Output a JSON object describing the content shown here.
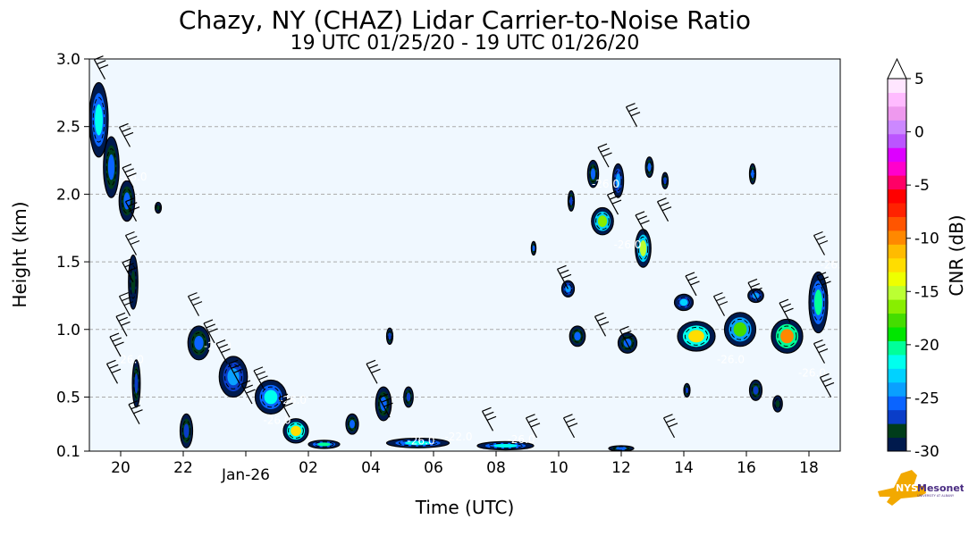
{
  "chart_data": {
    "type": "heatmap",
    "title": "Chazy, NY (CHAZ) Lidar Carrier-to-Noise Ratio",
    "subtitle": "19 UTC 01/25/20 - 19 UTC 01/26/20",
    "xlabel": "Time (UTC)",
    "ylabel": "Height (km)",
    "colorbar_label": "CNR (dB)",
    "xlim": [
      19,
      43
    ],
    "ylim": [
      0.1,
      3.0
    ],
    "x_ticks": [
      {
        "value": 20,
        "label": "20"
      },
      {
        "value": 22,
        "label": "22"
      },
      {
        "value": 24,
        "label": "Jan-26"
      },
      {
        "value": 26,
        "label": "02"
      },
      {
        "value": 28,
        "label": "04"
      },
      {
        "value": 30,
        "label": "06"
      },
      {
        "value": 32,
        "label": "08"
      },
      {
        "value": 34,
        "label": "10"
      },
      {
        "value": 36,
        "label": "12"
      },
      {
        "value": 38,
        "label": "14"
      },
      {
        "value": 40,
        "label": "16"
      },
      {
        "value": 42,
        "label": "18"
      }
    ],
    "y_ticks": [
      {
        "value": 0.1,
        "label": "0.1"
      },
      {
        "value": 0.5,
        "label": "0.5"
      },
      {
        "value": 1.0,
        "label": "1.0"
      },
      {
        "value": 1.5,
        "label": "1.5"
      },
      {
        "value": 2.0,
        "label": "2.0"
      },
      {
        "value": 2.5,
        "label": "2.5"
      },
      {
        "value": 3.0,
        "label": "3.0"
      }
    ],
    "grid": "horizontal dashed",
    "background": "#f0f8ff",
    "colorbar": {
      "range": [
        -30,
        5
      ],
      "extend": "max",
      "ticks": [
        {
          "value": 5,
          "label": "5"
        },
        {
          "value": 0,
          "label": "0"
        },
        {
          "value": -5,
          "label": "-5"
        },
        {
          "value": -10,
          "label": "-10"
        },
        {
          "value": -15,
          "label": "-15"
        },
        {
          "value": -20,
          "label": "-20"
        },
        {
          "value": -25,
          "label": "-25"
        },
        {
          "value": -30,
          "label": "-30"
        }
      ],
      "colors": [
        "#001a4d",
        "#003d1a",
        "#0a3dc8",
        "#0a64ff",
        "#0aa0ff",
        "#00d2ff",
        "#00ffee",
        "#00ff99",
        "#00e600",
        "#44dd00",
        "#88ee00",
        "#bbff33",
        "#eeff00",
        "#ffdd00",
        "#ffbb00",
        "#ff8800",
        "#ff5500",
        "#ff2200",
        "#ff0000",
        "#ff0066",
        "#ff00cc",
        "#dd00ff",
        "#bb55ff",
        "#cc88ff",
        "#ee99ee",
        "#ffbbff",
        "#ffe6ff"
      ],
      "overflow_color": "#ffffff"
    },
    "cloud_regions": [
      {
        "t": 19.3,
        "h": 2.55,
        "w": 0.6,
        "hh": 0.55,
        "cnr": -22
      },
      {
        "t": 19.7,
        "h": 2.2,
        "w": 0.5,
        "hh": 0.45,
        "cnr": -25
      },
      {
        "t": 20.2,
        "h": 1.95,
        "w": 0.5,
        "hh": 0.3,
        "cnr": -26
      },
      {
        "t": 20.4,
        "h": 1.35,
        "w": 0.3,
        "hh": 0.4,
        "cnr": -28
      },
      {
        "t": 20.5,
        "h": 0.6,
        "w": 0.25,
        "hh": 0.35,
        "cnr": -27
      },
      {
        "t": 21.2,
        "h": 1.9,
        "w": 0.2,
        "hh": 0.08,
        "cnr": -28
      },
      {
        "t": 22.5,
        "h": 0.9,
        "w": 0.7,
        "hh": 0.25,
        "cnr": -25
      },
      {
        "t": 23.6,
        "h": 0.65,
        "w": 0.9,
        "hh": 0.3,
        "cnr": -24
      },
      {
        "t": 22.1,
        "h": 0.25,
        "w": 0.4,
        "hh": 0.25,
        "cnr": -27
      },
      {
        "t": 24.8,
        "h": 0.5,
        "w": 1.0,
        "hh": 0.25,
        "cnr": -22
      },
      {
        "t": 25.6,
        "h": 0.25,
        "w": 0.8,
        "hh": 0.18,
        "cnr": -13
      },
      {
        "t": 26.5,
        "h": 0.15,
        "w": 1.0,
        "hh": 0.06,
        "cnr": -20
      },
      {
        "t": 28.4,
        "h": 0.45,
        "w": 0.5,
        "hh": 0.25,
        "cnr": -25
      },
      {
        "t": 29.5,
        "h": 0.16,
        "w": 2.0,
        "hh": 0.07,
        "cnr": -21
      },
      {
        "t": 32.3,
        "h": 0.14,
        "w": 1.8,
        "hh": 0.06,
        "cnr": -22
      },
      {
        "t": 28.6,
        "h": 0.95,
        "w": 0.2,
        "hh": 0.12,
        "cnr": -27
      },
      {
        "t": 29.2,
        "h": 0.5,
        "w": 0.3,
        "hh": 0.15,
        "cnr": -27
      },
      {
        "t": 34.3,
        "h": 1.3,
        "w": 0.4,
        "hh": 0.12,
        "cnr": -24
      },
      {
        "t": 34.4,
        "h": 1.95,
        "w": 0.2,
        "hh": 0.15,
        "cnr": -27
      },
      {
        "t": 34.6,
        "h": 0.95,
        "w": 0.5,
        "hh": 0.15,
        "cnr": -26
      },
      {
        "t": 35.1,
        "h": 2.15,
        "w": 0.35,
        "hh": 0.2,
        "cnr": -25
      },
      {
        "t": 35.4,
        "h": 1.8,
        "w": 0.7,
        "hh": 0.2,
        "cnr": -17
      },
      {
        "t": 35.9,
        "h": 2.1,
        "w": 0.35,
        "hh": 0.25,
        "cnr": -24
      },
      {
        "t": 36.7,
        "h": 1.6,
        "w": 0.5,
        "hh": 0.28,
        "cnr": -15
      },
      {
        "t": 36.9,
        "h": 2.2,
        "w": 0.25,
        "hh": 0.15,
        "cnr": -25
      },
      {
        "t": 37.4,
        "h": 2.1,
        "w": 0.2,
        "hh": 0.12,
        "cnr": -27
      },
      {
        "t": 36.2,
        "h": 0.9,
        "w": 0.6,
        "hh": 0.15,
        "cnr": -25
      },
      {
        "t": 38.0,
        "h": 1.2,
        "w": 0.6,
        "hh": 0.12,
        "cnr": -23
      },
      {
        "t": 38.4,
        "h": 0.95,
        "w": 1.2,
        "hh": 0.22,
        "cnr": -12
      },
      {
        "t": 39.8,
        "h": 1.0,
        "w": 1.0,
        "hh": 0.25,
        "cnr": -18
      },
      {
        "t": 40.3,
        "h": 1.25,
        "w": 0.5,
        "hh": 0.1,
        "cnr": -24
      },
      {
        "t": 40.2,
        "h": 2.15,
        "w": 0.2,
        "hh": 0.15,
        "cnr": -26
      },
      {
        "t": 41.3,
        "h": 0.95,
        "w": 1.0,
        "hh": 0.25,
        "cnr": -10
      },
      {
        "t": 42.3,
        "h": 1.2,
        "w": 0.6,
        "hh": 0.45,
        "cnr": -20
      },
      {
        "t": 40.3,
        "h": 0.55,
        "w": 0.4,
        "hh": 0.15,
        "cnr": -27
      },
      {
        "t": 41.0,
        "h": 0.45,
        "w": 0.3,
        "hh": 0.12,
        "cnr": -28
      },
      {
        "t": 38.1,
        "h": 0.55,
        "w": 0.2,
        "hh": 0.1,
        "cnr": -27
      },
      {
        "t": 33.2,
        "h": 1.6,
        "w": 0.15,
        "hh": 0.1,
        "cnr": -26
      },
      {
        "t": 27.4,
        "h": 0.3,
        "w": 0.4,
        "hh": 0.15,
        "cnr": -26
      },
      {
        "t": 36.0,
        "h": 0.12,
        "w": 0.8,
        "hh": 0.04,
        "cnr": -25
      }
    ],
    "contour_labels": [
      {
        "t": 20.4,
        "h": 2.1,
        "text": "-26.0"
      },
      {
        "t": 20.3,
        "h": 0.75,
        "text": "-26.0"
      },
      {
        "t": 23.1,
        "h": 0.85,
        "text": "-26.0"
      },
      {
        "t": 25.5,
        "h": 0.45,
        "text": "-26.0"
      },
      {
        "t": 25.0,
        "h": 0.3,
        "text": "-26.0"
      },
      {
        "t": 29.6,
        "h": 0.15,
        "text": "-26.0"
      },
      {
        "t": 30.8,
        "h": 0.18,
        "text": "-22.0"
      },
      {
        "t": 32.8,
        "h": 0.16,
        "text": "-26.0"
      },
      {
        "t": 35.5,
        "h": 2.05,
        "text": "-26.0"
      },
      {
        "t": 36.2,
        "h": 1.6,
        "text": "-26.0"
      },
      {
        "t": 39.5,
        "h": 0.75,
        "text": "-26.0"
      },
      {
        "t": 42.8,
        "h": 1.45,
        "text": "-26.0"
      },
      {
        "t": 42.1,
        "h": 0.65,
        "text": "-26.0"
      }
    ],
    "wind_barbs": [
      {
        "t": 19.5,
        "h": 2.85
      },
      {
        "t": 20.3,
        "h": 2.35
      },
      {
        "t": 20.4,
        "h": 2.05
      },
      {
        "t": 20.5,
        "h": 1.8
      },
      {
        "t": 20.5,
        "h": 1.55
      },
      {
        "t": 20.4,
        "h": 1.35
      },
      {
        "t": 20.3,
        "h": 1.1
      },
      {
        "t": 20.2,
        "h": 0.95
      },
      {
        "t": 20.0,
        "h": 0.8
      },
      {
        "t": 19.9,
        "h": 0.6
      },
      {
        "t": 20.6,
        "h": 0.3
      },
      {
        "t": 22.5,
        "h": 1.1
      },
      {
        "t": 23.0,
        "h": 0.9
      },
      {
        "t": 23.4,
        "h": 0.75
      },
      {
        "t": 23.8,
        "h": 0.6
      },
      {
        "t": 24.2,
        "h": 0.45
      },
      {
        "t": 24.6,
        "h": 0.55
      },
      {
        "t": 25.4,
        "h": 0.35
      },
      {
        "t": 28.2,
        "h": 0.6
      },
      {
        "t": 28.6,
        "h": 0.35
      },
      {
        "t": 31.9,
        "h": 0.25
      },
      {
        "t": 33.3,
        "h": 0.2
      },
      {
        "t": 34.5,
        "h": 0.2
      },
      {
        "t": 34.3,
        "h": 1.3
      },
      {
        "t": 35.6,
        "h": 2.2
      },
      {
        "t": 35.9,
        "h": 1.85
      },
      {
        "t": 36.5,
        "h": 2.5
      },
      {
        "t": 36.8,
        "h": 1.7
      },
      {
        "t": 37.5,
        "h": 1.8
      },
      {
        "t": 35.5,
        "h": 0.95
      },
      {
        "t": 36.3,
        "h": 0.85
      },
      {
        "t": 37.7,
        "h": 0.2
      },
      {
        "t": 38.4,
        "h": 1.25
      },
      {
        "t": 39.3,
        "h": 1.1
      },
      {
        "t": 40.4,
        "h": 1.2
      },
      {
        "t": 41.4,
        "h": 1.05
      },
      {
        "t": 42.5,
        "h": 1.55
      },
      {
        "t": 42.6,
        "h": 1.25
      },
      {
        "t": 42.5,
        "h": 0.75
      },
      {
        "t": 42.7,
        "h": 0.5
      }
    ]
  }
}
